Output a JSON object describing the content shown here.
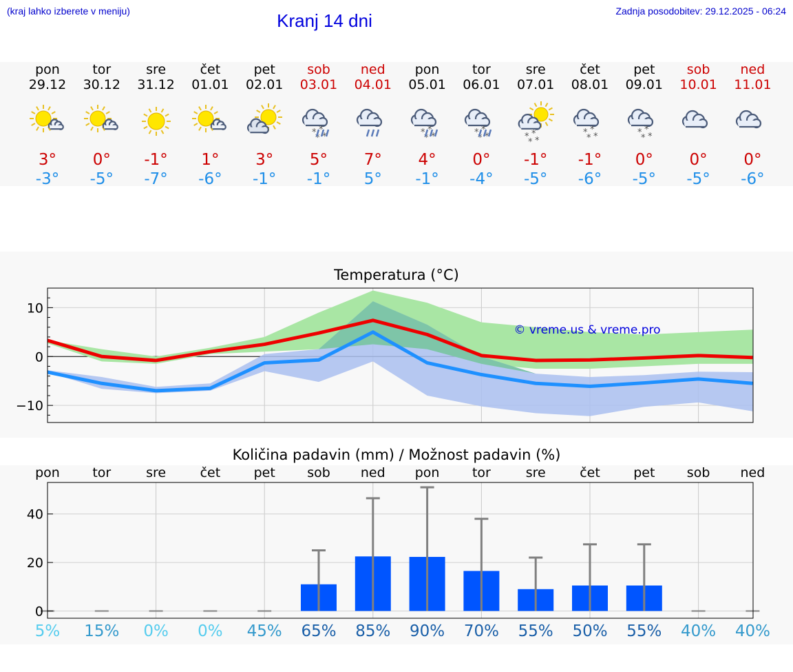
{
  "header": {
    "menu_hint": "(kraj lahko izberete v meniju)",
    "title": "Kranj 14 dni",
    "updated": "Zadnja posodobitev: 29.12.2025 - 06:24"
  },
  "days": [
    {
      "name": "pon",
      "date": "29.12",
      "weekend": false,
      "icon": "sun-cloud-icon",
      "max": "3°",
      "min": "-3°"
    },
    {
      "name": "tor",
      "date": "30.12",
      "weekend": false,
      "icon": "sun-cloud-icon",
      "max": "0°",
      "min": "-5°"
    },
    {
      "name": "sre",
      "date": "31.12",
      "weekend": false,
      "icon": "sun-icon",
      "max": "-1°",
      "min": "-7°"
    },
    {
      "name": "čet",
      "date": "01.01",
      "weekend": false,
      "icon": "sun-cloud-icon",
      "max": "1°",
      "min": "-6°"
    },
    {
      "name": "pet",
      "date": "02.01",
      "weekend": false,
      "icon": "cloud-sun-icon",
      "max": "3°",
      "min": "-1°"
    },
    {
      "name": "sob",
      "date": "03.01",
      "weekend": true,
      "icon": "cloud-rain-snow-icon",
      "max": "5°",
      "min": "-1°"
    },
    {
      "name": "ned",
      "date": "04.01",
      "weekend": true,
      "icon": "cloud-rain-icon",
      "max": "7°",
      "min": "5°"
    },
    {
      "name": "pon",
      "date": "05.01",
      "weekend": false,
      "icon": "cloud-rain-snow-icon",
      "max": "4°",
      "min": "-1°"
    },
    {
      "name": "tor",
      "date": "06.01",
      "weekend": false,
      "icon": "cloud-rain-snow-icon",
      "max": "0°",
      "min": "-4°"
    },
    {
      "name": "sre",
      "date": "07.01",
      "weekend": false,
      "icon": "sun-cloud-snow-icon",
      "max": "-1°",
      "min": "-5°"
    },
    {
      "name": "čet",
      "date": "08.01",
      "weekend": false,
      "icon": "cloud-snow-icon",
      "max": "-1°",
      "min": "-6°"
    },
    {
      "name": "pet",
      "date": "09.01",
      "weekend": false,
      "icon": "cloud-snow-icon",
      "max": "0°",
      "min": "-5°"
    },
    {
      "name": "sob",
      "date": "10.01",
      "weekend": true,
      "icon": "cloud-icon",
      "max": "0°",
      "min": "-5°"
    },
    {
      "name": "ned",
      "date": "11.01",
      "weekend": true,
      "icon": "cloud-icon",
      "max": "0°",
      "min": "-6°"
    }
  ],
  "colors": {
    "max_line": "#ee0000",
    "min_line": "#1e90ff",
    "max_band": "#a9e6a4",
    "min_band": "#aabff0",
    "overlap_band": "#7ec5a8",
    "bar": "#0055ff",
    "err": "#808080"
  },
  "chart_data": [
    {
      "type": "line",
      "title": "Temperatura (°C)",
      "watermark": "© vreme.us & vreme.pro",
      "ylim": [
        -13.5,
        14
      ],
      "yticks": [
        "10",
        "0",
        "−10"
      ],
      "ytick_values": [
        10,
        0,
        -10
      ],
      "series": [
        {
          "name": "max",
          "values": [
            3.3,
            0,
            -0.8,
            1,
            2.5,
            4.8,
            7.4,
            4.5,
            0.2,
            -0.8,
            -0.7,
            -0.3,
            0.2,
            -0.2
          ],
          "band_low": [
            2.7,
            -1,
            -1.5,
            0.5,
            1,
            1.5,
            2.5,
            1.5,
            -1.5,
            -2.5,
            -2.5,
            -2,
            -1.5,
            -1.5
          ],
          "band_high": [
            3.3,
            1.5,
            0,
            1.8,
            4,
            9,
            13.5,
            11,
            7,
            6,
            5,
            4.5,
            5,
            5.5
          ]
        },
        {
          "name": "min",
          "values": [
            -3.2,
            -5.5,
            -7,
            -6.5,
            -1.3,
            -0.7,
            5,
            -1.3,
            -3.7,
            -5.5,
            -6.1,
            -5.4,
            -4.6,
            -5.5
          ],
          "band_low": [
            -3.2,
            -6.6,
            -7.5,
            -7,
            -3,
            -5.2,
            -1,
            -8,
            -10.2,
            -11.6,
            -12.2,
            -10.3,
            -9.4,
            -11.2
          ],
          "band_high": [
            -2.8,
            -4.2,
            -6.2,
            -5.5,
            0.5,
            1.5,
            11.3,
            6.5,
            0,
            -3.5,
            -4.2,
            -3.8,
            -3.1,
            -3.2
          ]
        }
      ]
    },
    {
      "type": "bar",
      "title": "Količina padavin (mm) / Možnost padavin (%)",
      "ylim": [
        -3,
        53
      ],
      "yticks": [
        "40",
        "20",
        "0"
      ],
      "ytick_values": [
        40,
        20,
        0
      ],
      "categories": [
        "pon",
        "tor",
        "sre",
        "čet",
        "pet",
        "sob",
        "ned",
        "pon",
        "tor",
        "sre",
        "čet",
        "pet",
        "sob",
        "ned"
      ],
      "values": [
        0,
        0,
        0,
        0,
        0,
        11,
        22.5,
        22.3,
        16.5,
        9,
        10.5,
        10.5,
        0,
        0
      ],
      "err_high": [
        0,
        0,
        0,
        0,
        0,
        25,
        46.5,
        51,
        38,
        22,
        27.5,
        27.5,
        0,
        0
      ],
      "probability": [
        "5%",
        "15%",
        "0%",
        "0%",
        "45%",
        "65%",
        "85%",
        "90%",
        "70%",
        "55%",
        "50%",
        "55%",
        "40%",
        "40%"
      ],
      "probability_colors": [
        "#55ccee",
        "#3399cc",
        "#55ccee",
        "#55ccee",
        "#3399cc",
        "#1a5fa8",
        "#1a5fa8",
        "#1a5fa8",
        "#1a5fa8",
        "#1a5fa8",
        "#1a5fa8",
        "#1a5fa8",
        "#3399cc",
        "#3399cc"
      ]
    }
  ]
}
